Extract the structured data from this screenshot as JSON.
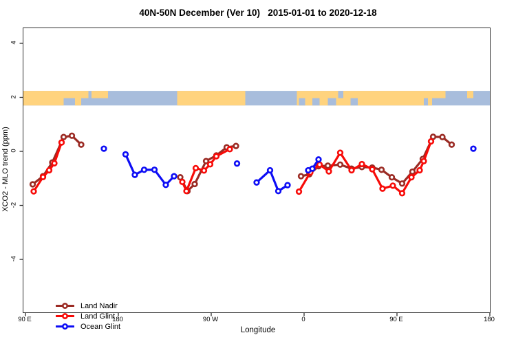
{
  "page": {
    "title": "40N-50N December (Ver 10)   2015-01-01 to 2020-12-18"
  },
  "legend": {
    "items": [
      {
        "label": "Land Nadir",
        "series": "land_nadir"
      },
      {
        "label": "Land Glint",
        "series": "land_glint"
      },
      {
        "label": "Ocean Glint",
        "series": "ocean_glint"
      }
    ]
  },
  "chart_data": {
    "type": "line",
    "title": "40N-50N December (Ver 10)   2015-01-01 to 2020-12-18",
    "xlabel": "Longitude",
    "ylabel": "XCO2 - MLO trend (ppm)",
    "x_unit_note": "degrees eastward along axis starting left of 90E; axis wraps 90E-180-90W-0-90E-180 (450 deg span)",
    "xlim_deg": [
      88,
      540
    ],
    "ylim": [
      -5.96,
      4.56
    ],
    "grid": false,
    "legend_position": "bottom-left-inside",
    "x_ticks": [
      {
        "deg": 90,
        "label": "90 E"
      },
      {
        "deg": 180,
        "label": "180"
      },
      {
        "deg": 270,
        "label": "90 W"
      },
      {
        "deg": 360,
        "label": "0"
      },
      {
        "deg": 450,
        "label": "90 E"
      },
      {
        "deg": 540,
        "label": "180"
      }
    ],
    "y_ticks": [
      {
        "value": -4,
        "label": "-4"
      },
      {
        "value": -2,
        "label": "-2"
      },
      {
        "value": 0,
        "label": "0"
      },
      {
        "value": 2,
        "label": "2"
      },
      {
        "value": 4,
        "label": "4"
      }
    ],
    "map_band": {
      "description": "world coastline strip for 40N-50N drawn across the plot",
      "top": 2.24,
      "bottom": 1.7,
      "ocean_color": "#A8BDDC",
      "land_color": "#FFD37E",
      "land_segments": [
        {
          "from": 88,
          "to": 127,
          "part": "full"
        },
        {
          "from": 127,
          "to": 151,
          "part": "top"
        },
        {
          "from": 138,
          "to": 144,
          "part": "full"
        },
        {
          "from": 154,
          "to": 170,
          "part": "top"
        },
        {
          "from": 237,
          "to": 303,
          "part": "full"
        },
        {
          "from": 353,
          "to": 484,
          "part": "full"
        },
        {
          "from": 484,
          "to": 497,
          "part": "top"
        },
        {
          "from": 518,
          "to": 524,
          "part": "top"
        }
      ],
      "ocean_patches": [
        {
          "from": 355,
          "to": 361,
          "part": "bottom"
        },
        {
          "from": 368,
          "to": 375,
          "part": "bottom"
        },
        {
          "from": 383,
          "to": 391,
          "part": "bottom"
        },
        {
          "from": 393,
          "to": 398,
          "part": "top"
        },
        {
          "from": 405,
          "to": 412,
          "part": "bottom"
        },
        {
          "from": 476,
          "to": 480,
          "part": "bottom"
        }
      ]
    },
    "series": [
      {
        "name": "Land Nadir",
        "key": "land_nadir",
        "color": "#9B2B24",
        "runs": [
          [
            [
              97,
              -1.22
            ],
            [
              107,
              -0.92
            ],
            [
              116,
              -0.41
            ],
            [
              127,
              0.53
            ],
            [
              135,
              0.58
            ],
            [
              144,
              0.25
            ]
          ],
          [
            [
              240,
              -0.96
            ],
            [
              247,
              -1.47
            ],
            [
              254,
              -1.21
            ],
            [
              265,
              -0.36
            ],
            [
              275,
              -0.15
            ],
            [
              285,
              0.15
            ],
            [
              294,
              0.2
            ]
          ],
          [
            [
              357,
              -0.92
            ],
            [
              365,
              -0.85
            ],
            [
              374,
              -0.55
            ],
            [
              383,
              -0.53
            ],
            [
              395,
              -0.49
            ],
            [
              406,
              -0.64
            ],
            [
              416,
              -0.58
            ],
            [
              426,
              -0.6
            ],
            [
              435,
              -0.68
            ],
            [
              445,
              -0.96
            ],
            [
              455,
              -1.19
            ],
            [
              465,
              -0.75
            ],
            [
              475,
              -0.28
            ],
            [
              485,
              0.54
            ],
            [
              494,
              0.53
            ],
            [
              503,
              0.25
            ]
          ]
        ]
      },
      {
        "name": "Land Glint",
        "key": "land_glint",
        "color": "#F70B08",
        "runs": [
          [
            [
              98,
              -1.48
            ],
            [
              107,
              -0.95
            ],
            [
              113,
              -0.7
            ],
            [
              118,
              -0.44
            ],
            [
              125,
              0.33
            ]
          ],
          [
            [
              242,
              -1.13
            ],
            [
              246,
              -1.47
            ],
            [
              255,
              -0.62
            ],
            [
              263,
              -0.71
            ],
            [
              269,
              -0.48
            ],
            [
              275,
              -0.18
            ],
            [
              288,
              0.08
            ]
          ],
          [
            [
              355,
              -1.49
            ],
            [
              366,
              -0.78
            ],
            [
              375,
              -0.49
            ],
            [
              384,
              -0.74
            ],
            [
              395,
              -0.05
            ],
            [
              406,
              -0.7
            ],
            [
              416,
              -0.47
            ],
            [
              426,
              -0.66
            ],
            [
              436,
              -1.38
            ],
            [
              446,
              -1.27
            ],
            [
              455,
              -1.55
            ],
            [
              464,
              -0.96
            ],
            [
              472,
              -0.7
            ],
            [
              476,
              -0.36
            ],
            [
              483,
              0.37
            ]
          ]
        ]
      },
      {
        "name": "Ocean Glint",
        "key": "ocean_glint",
        "color": "#0D0DF5",
        "runs": [
          [
            [
              166,
              0.1
            ]
          ],
          [
            [
              187,
              -0.11
            ],
            [
              196,
              -0.87
            ],
            [
              205,
              -0.68
            ],
            [
              215,
              -0.68
            ],
            [
              226,
              -1.24
            ],
            [
              234,
              -0.92
            ]
          ],
          [
            [
              295,
              -0.45
            ]
          ],
          [
            [
              314,
              -1.15
            ],
            [
              327,
              -0.7
            ],
            [
              335,
              -1.47
            ],
            [
              344,
              -1.25
            ]
          ],
          [
            [
              364,
              -0.7
            ],
            [
              368,
              -0.64
            ],
            [
              374,
              -0.3
            ]
          ],
          [
            [
              524,
              0.1
            ]
          ]
        ]
      }
    ],
    "styles": {
      "line_width": 3.2,
      "marker_radius": 3.3,
      "marker_stroke_width": 2.7,
      "marker_fill": "#ffffff",
      "axis_color": "#2e2e2e"
    }
  }
}
